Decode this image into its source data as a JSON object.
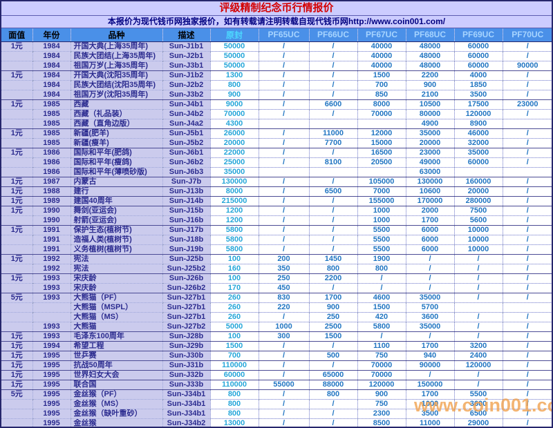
{
  "title": "评级精制纪念币行情报价",
  "subtitle": "本报价为现代钱币网独家报价，如有转载请注明转载自现代钱币网http://www.coin001.com/",
  "watermark": "www.coin001.com",
  "columns": [
    "面值",
    "年份",
    "品种",
    "描述",
    "原封",
    "PF65UC",
    "PF66UC",
    "PF67UC",
    "PF68UC",
    "PF69UC",
    "PF70UC"
  ],
  "colors": {
    "page_bg": "#ccccff",
    "title_text": "#d40000",
    "subtitle_text": "#000080",
    "header_bg": "#4a90e8",
    "header_left_text": "#000000",
    "header_seal_text": "#4cd9ff",
    "header_pf_text": "#a6d4ff",
    "left_cell_bg": "#cbcbed",
    "left_cell_text": "#2b2b8f",
    "seal_price_text": "#25a6d9",
    "pf_price_text": "#2175c2",
    "watermark_text": "#f0a04b"
  },
  "rows": [
    {
      "face_value": "1元",
      "year": "1984",
      "name": "开国大典(上海35周年)",
      "code": "Sun-J1b1",
      "prices": [
        "50000",
        "/",
        "/",
        "40000",
        "48000",
        "60000",
        "/"
      ],
      "group_start": true
    },
    {
      "face_value": "",
      "year": "1984",
      "name": "民族大团结(上海35周年)",
      "code": "Sun-J2b1",
      "prices": [
        "50000",
        "/",
        "/",
        "40000",
        "48000",
        "60000",
        "/"
      ],
      "group_start": false
    },
    {
      "face_value": "",
      "year": "1984",
      "name": "祖国万岁(上海35周年)",
      "code": "Sun-J3b1",
      "prices": [
        "50000",
        "/",
        "/",
        "40000",
        "48000",
        "60000",
        "90000"
      ],
      "group_start": false
    },
    {
      "face_value": "1元",
      "year": "1984",
      "name": "开国大典(沈阳35周年)",
      "code": "Sun-J1b2",
      "prices": [
        "1300",
        "/",
        "/",
        "1500",
        "2200",
        "4000",
        "/"
      ],
      "group_start": true
    },
    {
      "face_value": "",
      "year": "1984",
      "name": "民族大团结(沈阳35周年)",
      "code": "Sun-J2b2",
      "prices": [
        "800",
        "/",
        "/",
        "700",
        "900",
        "1850",
        "/"
      ],
      "group_start": false
    },
    {
      "face_value": "",
      "year": "1984",
      "name": "祖国万岁(沈阳35周年)",
      "code": "Sun-J3b2",
      "prices": [
        "900",
        "/",
        "/",
        "850",
        "2100",
        "3500",
        "/"
      ],
      "group_start": false
    },
    {
      "face_value": "1元",
      "year": "1985",
      "name": "西藏",
      "code": "Sun-J4b1",
      "prices": [
        "9000",
        "/",
        "6600",
        "8000",
        "10500",
        "17500",
        "23000"
      ],
      "group_start": true
    },
    {
      "face_value": "",
      "year": "1985",
      "name": "西藏（礼品装）",
      "code": "Sun-J4b2",
      "prices": [
        "70000",
        "/",
        "/",
        "70000",
        "80000",
        "120000",
        "/"
      ],
      "group_start": false
    },
    {
      "face_value": "",
      "year": "1985",
      "name": "西藏（直角边版）",
      "code": "Sun-J4a2",
      "prices": [
        "4300",
        "",
        "",
        "",
        "4900",
        "8900",
        ""
      ],
      "group_start": false
    },
    {
      "face_value": "1元",
      "year": "1985",
      "name": "新疆(肥羊)",
      "code": "Sun-J5b1",
      "prices": [
        "26000",
        "/",
        "11000",
        "12000",
        "35000",
        "46000",
        "/"
      ],
      "group_start": true
    },
    {
      "face_value": "",
      "year": "1985",
      "name": "新疆(瘦羊)",
      "code": "Sun-J5b2",
      "prices": [
        "20000",
        "/",
        "7700",
        "15000",
        "20000",
        "32000",
        "/"
      ],
      "group_start": false
    },
    {
      "face_value": "1元",
      "year": "1986",
      "name": "国际和平年(肥鸽)",
      "code": "Sun-J6b1",
      "prices": [
        "22000",
        "/",
        "/",
        "16500",
        "23000",
        "35000",
        "/"
      ],
      "group_start": true
    },
    {
      "face_value": "",
      "year": "1986",
      "name": "国际和平年(瘦鸽)",
      "code": "Sun-J6b2",
      "prices": [
        "25000",
        "/",
        "8100",
        "20500",
        "49000",
        "60000",
        "/"
      ],
      "group_start": false
    },
    {
      "face_value": "",
      "year": "1986",
      "name": "国际和平年(薄喷砂版)",
      "code": "Sun-J6b3",
      "prices": [
        "35000",
        "",
        "",
        "",
        "63000",
        "",
        ""
      ],
      "group_start": false
    },
    {
      "face_value": "1元",
      "year": "1987",
      "name": "内蒙古",
      "code": "Sun-J7b",
      "prices": [
        "130000",
        "/",
        "/",
        "105000",
        "130000",
        "160000",
        "/"
      ],
      "group_start": true
    },
    {
      "face_value": "1元",
      "year": "1988",
      "name": "建行",
      "code": "Sun-J13b",
      "prices": [
        "8000",
        "/",
        "6500",
        "7000",
        "10600",
        "20000",
        "/"
      ],
      "group_start": true
    },
    {
      "face_value": "1元",
      "year": "1989",
      "name": "建国40周年",
      "code": "Sun-J14b",
      "prices": [
        "215000",
        "/",
        "/",
        "155000",
        "170000",
        "280000",
        "/"
      ],
      "group_start": true
    },
    {
      "face_value": "1元",
      "year": "1990",
      "name": "舞剑(亚运会)",
      "code": "Sun-J15b",
      "prices": [
        "1200",
        "/",
        "/",
        "1000",
        "2000",
        "7500",
        "/"
      ],
      "group_start": true
    },
    {
      "face_value": "",
      "year": "1990",
      "name": "射箭(亚运会)",
      "code": "Sun-J16b",
      "prices": [
        "1200",
        "/",
        "/",
        "1000",
        "1700",
        "5600",
        "/"
      ],
      "group_start": false
    },
    {
      "face_value": "1元",
      "year": "1991",
      "name": "保护生态(植树节)",
      "code": "Sun-J17b",
      "prices": [
        "5800",
        "/",
        "/",
        "5500",
        "6000",
        "10000",
        "/"
      ],
      "group_start": true
    },
    {
      "face_value": "",
      "year": "1991",
      "name": "造福人类(植树节)",
      "code": "Sun-J18b",
      "prices": [
        "5800",
        "/",
        "/",
        "5500",
        "6000",
        "10000",
        "/"
      ],
      "group_start": false
    },
    {
      "face_value": "",
      "year": "1991",
      "name": "义务植树(植树节)",
      "code": "Sun-J19b",
      "prices": [
        "5800",
        "/",
        "/",
        "5500",
        "6000",
        "10000",
        "/"
      ],
      "group_start": false
    },
    {
      "face_value": "1元",
      "year": "1992",
      "name": "宪法",
      "code": "Sun-J25b",
      "prices": [
        "100",
        "200",
        "1450",
        "1900",
        "/",
        "/",
        "/"
      ],
      "group_start": true
    },
    {
      "face_value": "",
      "year": "1992",
      "name": "宪法",
      "code": "Sun-J25b2",
      "prices": [
        "160",
        "350",
        "800",
        "800",
        "/",
        "/",
        "/"
      ],
      "group_start": false
    },
    {
      "face_value": "1元",
      "year": "1993",
      "name": "宋庆龄",
      "code": "Sun-J26b",
      "prices": [
        "100",
        "250",
        "2200",
        "/",
        "/",
        "/",
        "/"
      ],
      "group_start": true
    },
    {
      "face_value": "",
      "year": "1993",
      "name": "宋庆龄",
      "code": "Sun-J26b2",
      "prices": [
        "170",
        "450",
        "/",
        "/",
        "/",
        "/",
        "/"
      ],
      "group_start": false
    },
    {
      "face_value": "5元",
      "year": "1993",
      "name": "大熊猫（PF）",
      "code": "Sun-J27b1",
      "prices": [
        "260",
        "830",
        "1700",
        "4600",
        "35000",
        "/",
        "/"
      ],
      "group_start": true
    },
    {
      "face_value": "",
      "year": "",
      "name": "大熊猫（MSPL）",
      "code": "Sun-J27b1",
      "prices": [
        "260",
        "220",
        "900",
        "1500",
        "5700",
        "",
        ""
      ],
      "group_start": false
    },
    {
      "face_value": "",
      "year": "",
      "name": "大熊猫（MS）",
      "code": "Sun-J27b1",
      "prices": [
        "260",
        "/",
        "250",
        "420",
        "3600",
        "/",
        "/"
      ],
      "group_start": false
    },
    {
      "face_value": "",
      "year": "1993",
      "name": "大熊猫",
      "code": "Sun-J27b2",
      "prices": [
        "5000",
        "1000",
        "2500",
        "5800",
        "35000",
        "/",
        "/"
      ],
      "group_start": false
    },
    {
      "face_value": "1元",
      "year": "1993",
      "name": "毛泽东100周年",
      "code": "Sun-J28b",
      "prices": [
        "100",
        "300",
        "1500",
        "/",
        "/",
        "/",
        "/"
      ],
      "group_start": true
    },
    {
      "face_value": "1元",
      "year": "1994",
      "name": "希望工程",
      "code": "Sun-J29b",
      "prices": [
        "1500",
        "/",
        "/",
        "1100",
        "1700",
        "3200",
        "/"
      ],
      "group_start": true
    },
    {
      "face_value": "1元",
      "year": "1995",
      "name": "世乒赛",
      "code": "Sun-J30b",
      "prices": [
        "700",
        "/",
        "500",
        "750",
        "940",
        "2400",
        "/"
      ],
      "group_start": true
    },
    {
      "face_value": "1元",
      "year": "1995",
      "name": "抗战50周年",
      "code": "Sun-J31b",
      "prices": [
        "110000",
        "/",
        "/",
        "70000",
        "90000",
        "120000",
        "/"
      ],
      "group_start": true
    },
    {
      "face_value": "1元",
      "year": "1995",
      "name": "世界妇女大会",
      "code": "Sun-J32b",
      "prices": [
        "60000",
        "/",
        "65000",
        "70000",
        "/",
        "/",
        "/"
      ],
      "group_start": true
    },
    {
      "face_value": "1元",
      "year": "1995",
      "name": "联合国",
      "code": "Sun-J33b",
      "prices": [
        "110000",
        "55000",
        "88000",
        "120000",
        "150000",
        "/",
        "/"
      ],
      "group_start": true
    },
    {
      "face_value": "5元",
      "year": "1995",
      "name": "金丝猴（PF）",
      "code": "Sun-J34b1",
      "prices": [
        "800",
        "/",
        "800",
        "900",
        "1700",
        "5500",
        "/"
      ],
      "group_start": true
    },
    {
      "face_value": "",
      "year": "1995",
      "name": "金丝猴（MS）",
      "code": "Sun-J34b1",
      "prices": [
        "800",
        "/",
        "/",
        "750",
        "1000",
        "3600",
        "/"
      ],
      "group_start": false
    },
    {
      "face_value": "",
      "year": "1995",
      "name": "金丝猴（缺叶重砂）",
      "code": "Sun-J34b1",
      "prices": [
        "800",
        "/",
        "/",
        "2300",
        "3500",
        "6500",
        "/"
      ],
      "group_start": false
    },
    {
      "face_value": "",
      "year": "1995",
      "name": "金丝猴",
      "code": "Sun-J34b2",
      "prices": [
        "13000",
        "/",
        "/",
        "8500",
        "11000",
        "29000",
        "/"
      ],
      "group_start": false
    }
  ]
}
